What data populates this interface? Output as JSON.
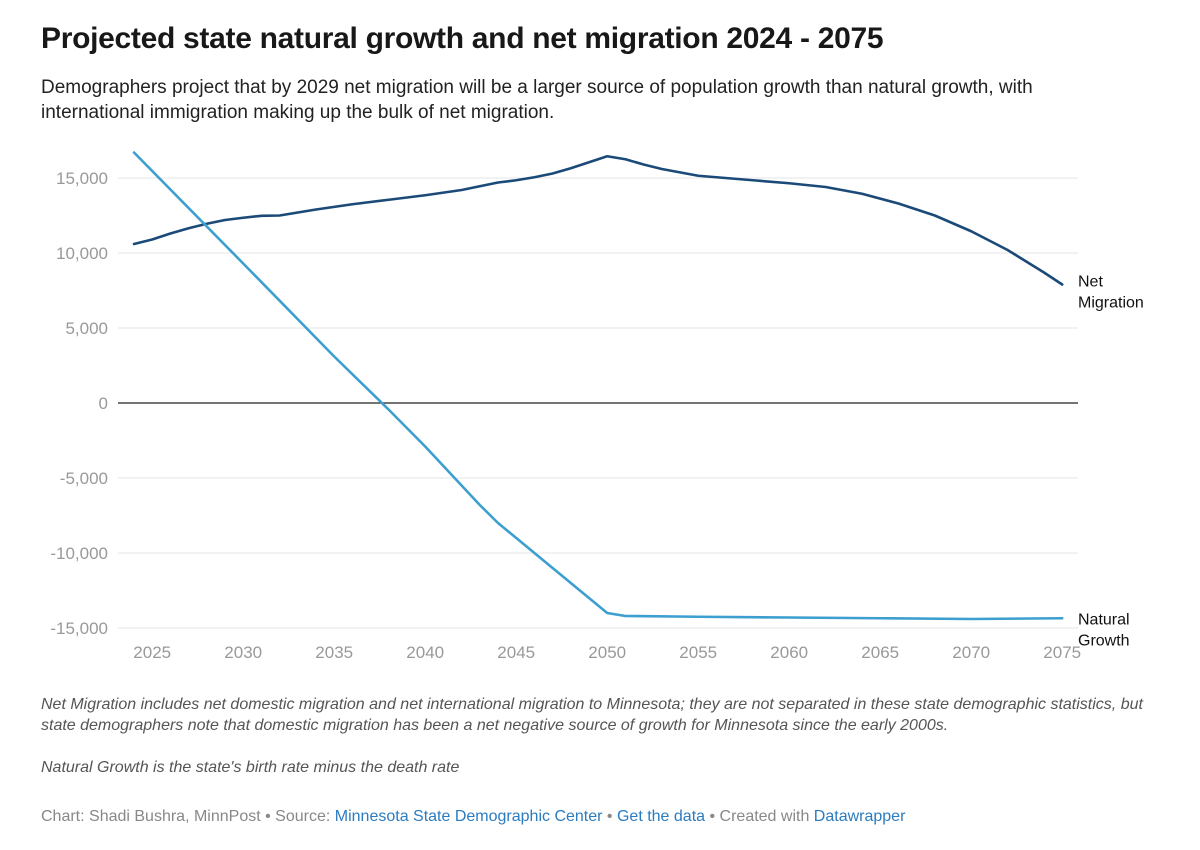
{
  "title": "Projected state natural growth and net migration 2024 - 2075",
  "subtitle": "Demographers project that by 2029 net migration will be a larger source of population growth than natural growth, with international immigration making up the bulk of net migration.",
  "chart_data": {
    "type": "line",
    "xlim": [
      2024,
      2075
    ],
    "ylim": [
      -15000,
      16700
    ],
    "x_ticks": [
      "2025",
      "2030",
      "2035",
      "2040",
      "2045",
      "2050",
      "2055",
      "2060",
      "2065",
      "2070",
      "2075"
    ],
    "y_ticks": [
      {
        "value": 15000,
        "label": "15,000"
      },
      {
        "value": 10000,
        "label": "10,000"
      },
      {
        "value": 5000,
        "label": "5,000"
      },
      {
        "value": 0,
        "label": "0"
      },
      {
        "value": -5000,
        "label": "-5,000"
      },
      {
        "value": -10000,
        "label": "-10,000"
      },
      {
        "value": -15000,
        "label": "-15,000"
      }
    ],
    "grid": true,
    "series": [
      {
        "name": "Net Migration",
        "label_lines": [
          "Net",
          "Migration"
        ],
        "color": "#1b4a78",
        "x": [
          2024,
          2025,
          2026,
          2027,
          2028,
          2029,
          2030,
          2031,
          2032,
          2034,
          2036,
          2038,
          2040,
          2042,
          2044,
          2045,
          2046,
          2047,
          2048,
          2049,
          2050,
          2051,
          2052,
          2053,
          2055,
          2058,
          2060,
          2062,
          2064,
          2066,
          2068,
          2070,
          2072,
          2074,
          2075
        ],
        "y": [
          10600,
          10900,
          11300,
          11650,
          11950,
          12200,
          12350,
          12480,
          12500,
          12900,
          13250,
          13550,
          13850,
          14200,
          14700,
          14850,
          15050,
          15300,
          15650,
          16050,
          16450,
          16250,
          15900,
          15600,
          15150,
          14850,
          14650,
          14400,
          13950,
          13300,
          12500,
          11450,
          10200,
          8700,
          7900
        ]
      },
      {
        "name": "Natural Growth",
        "label_lines": [
          "Natural",
          "Growth"
        ],
        "color": "#3c9fd0",
        "x": [
          2024,
          2030,
          2035,
          2038,
          2040,
          2043,
          2044,
          2047,
          2050,
          2051,
          2055,
          2060,
          2065,
          2070,
          2075
        ],
        "y": [
          16700,
          9300,
          3100,
          -450,
          -2900,
          -6800,
          -8000,
          -11000,
          -14000,
          -14200,
          -14250,
          -14300,
          -14350,
          -14400,
          -14350
        ]
      }
    ]
  },
  "notes": [
    "Net Migration includes net domestic migration and net international migration to Minnesota; they are not separated in these state demographic statistics, but state demographers note that domestic migration has been a net negative source of growth for Minnesota since the early 2000s.",
    "Natural Growth is the state's birth rate minus the death rate"
  ],
  "footer": {
    "credit": "Chart: Shadi Bushra, MinnPost",
    "sep": " • ",
    "source_prefix": "Source: ",
    "source_link": "Minnesota State Demographic Center",
    "get_data": "Get the data",
    "created_prefix": "Created with ",
    "created_link": "Datawrapper"
  }
}
